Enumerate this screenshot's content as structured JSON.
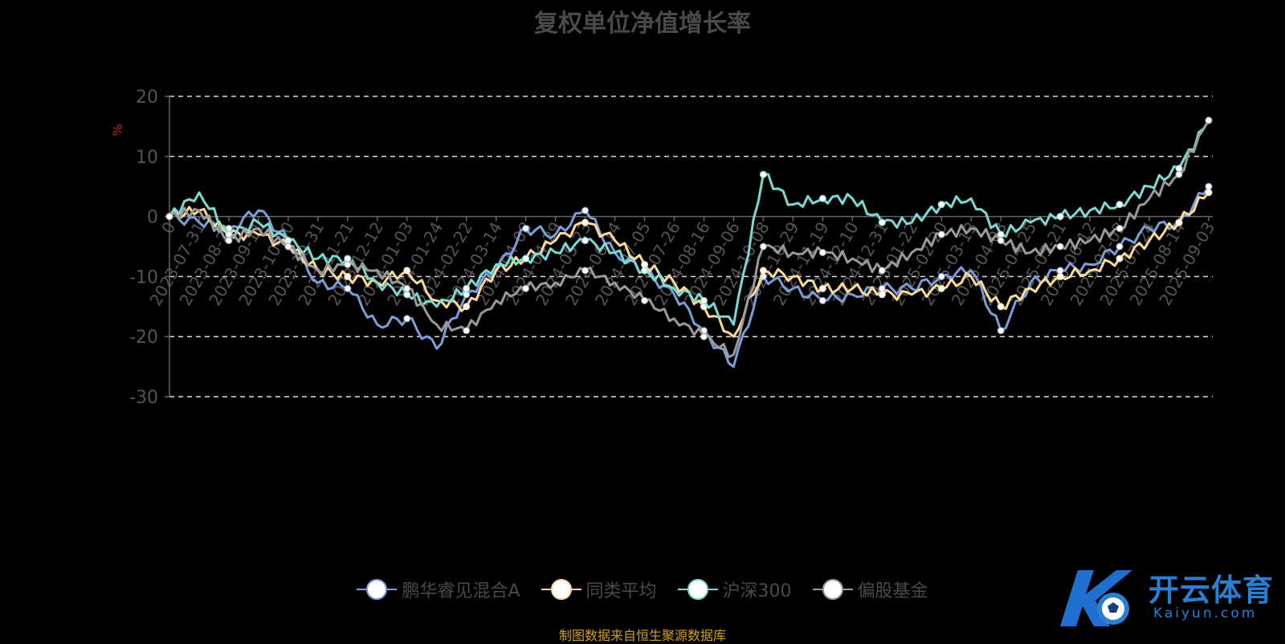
{
  "chart_data": {
    "type": "line",
    "title": "复权单位净值增长率",
    "ylabel": "%",
    "ylim": [
      -30,
      20
    ],
    "yticks": [
      -30,
      -20,
      -10,
      0,
      10,
      20
    ],
    "grid": true,
    "legend_position": "bottom",
    "categories": [
      "0",
      "2023-07-31",
      "2023-08-21",
      "2023-09-11",
      "2023-10-10",
      "2023-10-31",
      "2023-11-21",
      "2023-12-12",
      "2024-01-03",
      "2024-01-24",
      "2024-02-22",
      "2024-03-14",
      "2024-04-08",
      "2024-04-29",
      "2024-05-23",
      "2024-06-14",
      "2024-07-05",
      "2024-07-26",
      "2024-08-16",
      "2024-09-06",
      "2024-10-08",
      "2024-10-29",
      "2024-11-19",
      "2024-12-10",
      "2024-12-31",
      "2025-01-22",
      "2025-02-20",
      "2025-03-13",
      "2025-04-03",
      "2025-04-25",
      "2025-05-21",
      "2025-06-12",
      "2025-07-03",
      "2025-07-24",
      "2025-08-14",
      "2025-09-03"
    ],
    "series": [
      {
        "name": "鹏华睿见混合A",
        "color": "#7b9ed9",
        "values": [
          0,
          -1,
          -2,
          1,
          -4,
          -11,
          -12,
          -18,
          -17,
          -22,
          -13,
          -9,
          -2,
          -3,
          1,
          -6,
          -9,
          -13,
          -19,
          -25,
          -10,
          -12,
          -14,
          -13,
          -12,
          -12,
          -10,
          -9,
          -19,
          -11,
          -9,
          -8,
          -5,
          -2,
          -1,
          5
        ]
      },
      {
        "name": "同类平均",
        "color": "#fbd99a",
        "values": [
          0,
          1,
          -3,
          -3,
          -5,
          -9,
          -10,
          -11,
          -9,
          -14,
          -15,
          -9,
          -7,
          -4,
          -1,
          -4,
          -8,
          -11,
          -15,
          -20,
          -9,
          -10,
          -12,
          -12,
          -13,
          -13,
          -12,
          -10,
          -15,
          -12,
          -10,
          -9,
          -7,
          -4,
          -1,
          4
        ]
      },
      {
        "name": "沪深300",
        "color": "#7fd9d3",
        "values": [
          0,
          4,
          -3,
          -1,
          -4,
          -7,
          -7,
          -11,
          -13,
          -15,
          -12,
          -8,
          -7,
          -6,
          -4,
          -6,
          -9,
          -12,
          -14,
          -18,
          7,
          2,
          3,
          3,
          -1,
          -1,
          2,
          3,
          -3,
          -1,
          0,
          1,
          2,
          5,
          8,
          16
        ]
      },
      {
        "name": "偏股基金",
        "color": "#9a9a9a",
        "values": [
          0,
          1,
          -4,
          -2,
          -5,
          -9,
          -8,
          -9,
          -12,
          -18,
          -19,
          -14,
          -12,
          -11,
          -9,
          -11,
          -14,
          -17,
          -20,
          -23,
          -5,
          -6,
          -6,
          -7,
          -9,
          -6,
          -3,
          -2,
          -4,
          -6,
          -5,
          -4,
          -2,
          3,
          7,
          16
        ]
      }
    ]
  },
  "source": "制图数据来自恒生聚源数据库",
  "logo": {
    "cn": "开云体育",
    "en": "Kaiyun.com"
  }
}
